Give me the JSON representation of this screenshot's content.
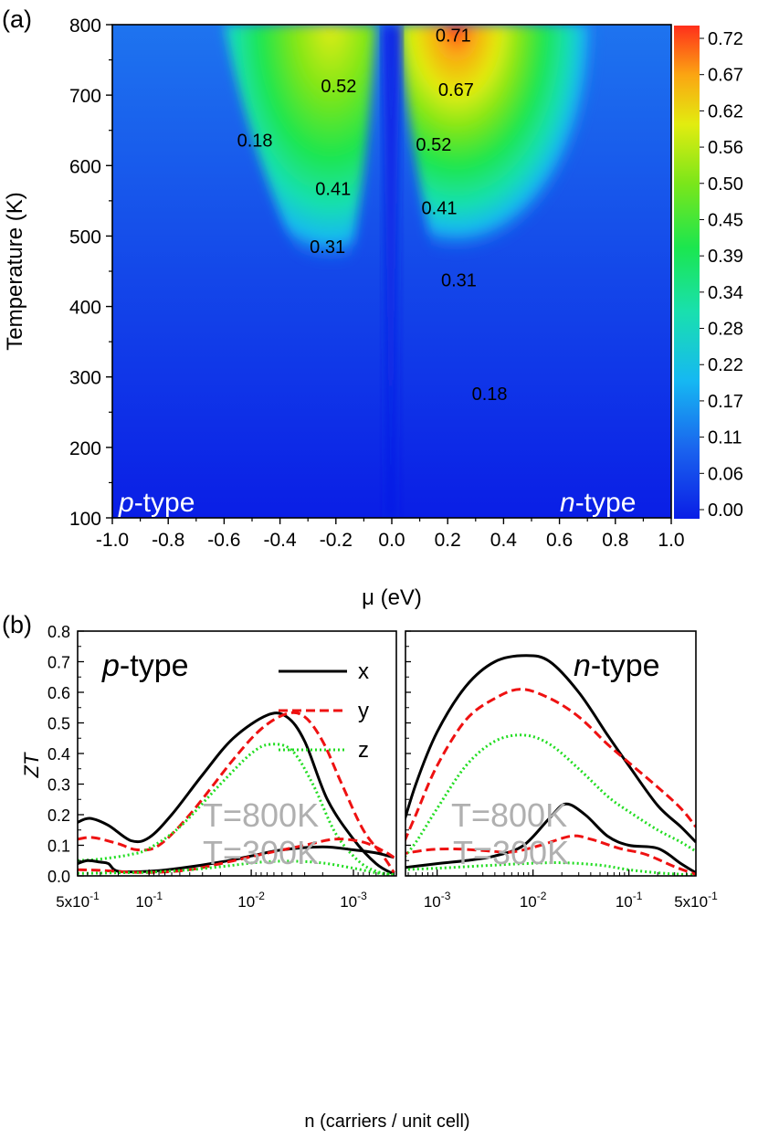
{
  "panel_a": {
    "label": "(a)",
    "xlabel": "μ (eV)",
    "ylabel": "Temperature (K)",
    "x_ticks": [
      "-1.0",
      "-0.8",
      "-0.6",
      "-0.4",
      "-0.2",
      "0.0",
      "0.2",
      "0.4",
      "0.6",
      "0.8",
      "1.0"
    ],
    "y_ticks": [
      "100",
      "200",
      "300",
      "400",
      "500",
      "600",
      "700",
      "800"
    ],
    "colorbar_ticks": [
      "0.72",
      "0.67",
      "0.62",
      "0.56",
      "0.50",
      "0.45",
      "0.39",
      "0.34",
      "0.28",
      "0.22",
      "0.17",
      "0.11",
      "0.06",
      "0.00"
    ],
    "colors": [
      "#0a1ee6",
      "#1a63ee",
      "#16b8f2",
      "#19e0ae",
      "#1be64f",
      "#7be61a",
      "#e2ec10",
      "#fba512",
      "#ff2f1b"
    ],
    "type_left_italic": "p",
    "type_left_rest": "-type",
    "type_right_italic": "n",
    "type_right_rest": "-type",
    "contour_labels": [
      {
        "text": "0.71",
        "mu": 0.22,
        "T": 785
      },
      {
        "text": "0.52",
        "mu": -0.19,
        "T": 713
      },
      {
        "text": "0.67",
        "mu": 0.23,
        "T": 708
      },
      {
        "text": "0.18",
        "mu": -0.49,
        "T": 636
      },
      {
        "text": "0.52",
        "mu": 0.15,
        "T": 630
      },
      {
        "text": "0.41",
        "mu": -0.21,
        "T": 567
      },
      {
        "text": "0.41",
        "mu": 0.17,
        "T": 540
      },
      {
        "text": "0.31",
        "mu": -0.23,
        "T": 485
      },
      {
        "text": "0.31",
        "mu": 0.24,
        "T": 438
      },
      {
        "text": "0.18",
        "mu": 0.35,
        "T": 276
      }
    ]
  },
  "panel_b": {
    "label": "(b)",
    "xlabel": "n (carriers / unit cell)",
    "ylabel": "ZT",
    "y_ticks": [
      "0.0",
      "0.1",
      "0.2",
      "0.3",
      "0.4",
      "0.5",
      "0.6",
      "0.7",
      "0.8"
    ],
    "left_x_ticks": [
      {
        "mant": "5x10",
        "exp": "-1",
        "logn": -0.301
      },
      {
        "mant": "10",
        "exp": "-1",
        "logn": -1
      },
      {
        "mant": "10",
        "exp": "-2",
        "logn": -2
      },
      {
        "mant": "10",
        "exp": "-3",
        "logn": -3
      }
    ],
    "right_x_ticks": [
      {
        "mant": "10",
        "exp": "-3",
        "logn": -3
      },
      {
        "mant": "10",
        "exp": "-2",
        "logn": -2
      },
      {
        "mant": "10",
        "exp": "-1",
        "logn": -1
      },
      {
        "mant": "5x10",
        "exp": "-1",
        "logn": -0.301
      }
    ],
    "left_title_italic": "p",
    "left_title_rest": "-type",
    "right_title_italic": "n",
    "right_title_rest": "-type",
    "annotation_high": "T=800K",
    "annotation_low": "T=300K",
    "legend": [
      "x",
      "y",
      "z"
    ]
  },
  "chart_data": [
    {
      "type": "heatmap",
      "title": "",
      "xlabel": "μ (eV)",
      "ylabel": "Temperature (K)",
      "xlim": [
        -1.0,
        1.0
      ],
      "ylim": [
        100,
        800
      ],
      "colorbar_range": [
        0.0,
        0.72
      ],
      "peaks": [
        {
          "mu": 0.25,
          "T": 800,
          "ZT": 0.72
        },
        {
          "mu": -0.2,
          "T": 800,
          "ZT": 0.53
        }
      ]
    },
    {
      "type": "line",
      "panel": "p-type",
      "xlabel": "n (carriers / unit cell)",
      "ylabel": "ZT",
      "x_scale": "log",
      "xlim": [
        0.5,
        0.0004
      ],
      "ylim": [
        0,
        0.8
      ],
      "series": [
        {
          "name": "x",
          "T": "T=800K",
          "color": "#000000",
          "dash": "solid",
          "points": [
            [
              0.5,
              0.175
            ],
            [
              0.38,
              0.188
            ],
            [
              0.25,
              0.165
            ],
            [
              0.15,
              0.115
            ],
            [
              0.1,
              0.125
            ],
            [
              0.06,
              0.2
            ],
            [
              0.03,
              0.33
            ],
            [
              0.015,
              0.45
            ],
            [
              0.007,
              0.525
            ],
            [
              0.0045,
              0.52
            ],
            [
              0.003,
              0.44
            ],
            [
              0.0018,
              0.25
            ],
            [
              0.001,
              0.12
            ],
            [
              0.0006,
              0.04
            ],
            [
              0.0004,
              0.005
            ]
          ]
        },
        {
          "name": "y",
          "T": "T=800K",
          "color": "#ee1111",
          "dash": "dashed",
          "points": [
            [
              0.5,
              0.12
            ],
            [
              0.35,
              0.125
            ],
            [
              0.2,
              0.105
            ],
            [
              0.13,
              0.085
            ],
            [
              0.08,
              0.1
            ],
            [
              0.04,
              0.2
            ],
            [
              0.015,
              0.38
            ],
            [
              0.008,
              0.48
            ],
            [
              0.0045,
              0.53
            ],
            [
              0.003,
              0.52
            ],
            [
              0.002,
              0.44
            ],
            [
              0.0013,
              0.3
            ],
            [
              0.0008,
              0.15
            ],
            [
              0.0005,
              0.06
            ],
            [
              0.0004,
              0.01
            ]
          ]
        },
        {
          "name": "z",
          "T": "T=800K",
          "color": "#22dd22",
          "dash": "dotted",
          "points": [
            [
              0.5,
              0.05
            ],
            [
              0.3,
              0.055
            ],
            [
              0.15,
              0.07
            ],
            [
              0.1,
              0.09
            ],
            [
              0.05,
              0.16
            ],
            [
              0.02,
              0.3
            ],
            [
              0.01,
              0.4
            ],
            [
              0.0065,
              0.43
            ],
            [
              0.004,
              0.41
            ],
            [
              0.0025,
              0.3
            ],
            [
              0.0015,
              0.14
            ],
            [
              0.0009,
              0.05
            ],
            [
              0.0006,
              0.015
            ],
            [
              0.0004,
              0.004
            ]
          ]
        },
        {
          "name": "x",
          "T": "T=300K",
          "color": "#000000",
          "dash": "solid",
          "points": [
            [
              0.5,
              0.04
            ],
            [
              0.4,
              0.05
            ],
            [
              0.3,
              0.045
            ],
            [
              0.25,
              0.04
            ],
            [
              0.2,
              0.015
            ],
            [
              0.1,
              0.015
            ],
            [
              0.05,
              0.025
            ],
            [
              0.02,
              0.045
            ],
            [
              0.01,
              0.065
            ],
            [
              0.005,
              0.085
            ],
            [
              0.002,
              0.095
            ],
            [
              0.001,
              0.085
            ],
            [
              0.0006,
              0.075
            ],
            [
              0.0004,
              0.06
            ]
          ]
        },
        {
          "name": "y",
          "T": "T=300K",
          "color": "#ee1111",
          "dash": "dashed",
          "points": [
            [
              0.5,
              0.02
            ],
            [
              0.3,
              0.018
            ],
            [
              0.15,
              0.012
            ],
            [
              0.08,
              0.012
            ],
            [
              0.04,
              0.02
            ],
            [
              0.02,
              0.04
            ],
            [
              0.008,
              0.07
            ],
            [
              0.003,
              0.1
            ],
            [
              0.0015,
              0.12
            ],
            [
              0.0008,
              0.11
            ],
            [
              0.0005,
              0.08
            ],
            [
              0.0004,
              0.06
            ]
          ]
        },
        {
          "name": "z",
          "T": "T=300K",
          "color": "#22dd22",
          "dash": "dotted",
          "points": [
            [
              0.5,
              0.008
            ],
            [
              0.2,
              0.01
            ],
            [
              0.1,
              0.012
            ],
            [
              0.04,
              0.02
            ],
            [
              0.02,
              0.03
            ],
            [
              0.008,
              0.045
            ],
            [
              0.004,
              0.048
            ],
            [
              0.002,
              0.042
            ],
            [
              0.001,
              0.025
            ],
            [
              0.0006,
              0.01
            ],
            [
              0.0004,
              0.003
            ]
          ]
        }
      ]
    },
    {
      "type": "line",
      "panel": "n-type",
      "xlabel": "n (carriers / unit cell)",
      "ylabel": "ZT",
      "x_scale": "log",
      "xlim": [
        0.0004,
        0.5
      ],
      "ylim": [
        0,
        0.8
      ],
      "series": [
        {
          "name": "x",
          "T": "T=800K",
          "color": "#000000",
          "dash": "solid",
          "points": [
            [
              0.0004,
              0.12
            ],
            [
              0.0006,
              0.3
            ],
            [
              0.001,
              0.47
            ],
            [
              0.002,
              0.62
            ],
            [
              0.004,
              0.7
            ],
            [
              0.0085,
              0.72
            ],
            [
              0.015,
              0.7
            ],
            [
              0.03,
              0.6
            ],
            [
              0.06,
              0.46
            ],
            [
              0.1,
              0.36
            ],
            [
              0.2,
              0.23
            ],
            [
              0.35,
              0.16
            ],
            [
              0.5,
              0.11
            ]
          ]
        },
        {
          "name": "y",
          "T": "T=800K",
          "color": "#ee1111",
          "dash": "dashed",
          "points": [
            [
              0.0004,
              0.07
            ],
            [
              0.0006,
              0.2
            ],
            [
              0.001,
              0.36
            ],
            [
              0.002,
              0.51
            ],
            [
              0.004,
              0.58
            ],
            [
              0.0075,
              0.61
            ],
            [
              0.015,
              0.58
            ],
            [
              0.03,
              0.52
            ],
            [
              0.06,
              0.43
            ],
            [
              0.1,
              0.37
            ],
            [
              0.2,
              0.29
            ],
            [
              0.35,
              0.22
            ],
            [
              0.5,
              0.16
            ]
          ]
        },
        {
          "name": "z",
          "T": "T=800K",
          "color": "#22dd22",
          "dash": "dotted",
          "points": [
            [
              0.0004,
              0.04
            ],
            [
              0.0006,
              0.11
            ],
            [
              0.001,
              0.22
            ],
            [
              0.002,
              0.36
            ],
            [
              0.004,
              0.44
            ],
            [
              0.008,
              0.46
            ],
            [
              0.015,
              0.43
            ],
            [
              0.03,
              0.35
            ],
            [
              0.06,
              0.26
            ],
            [
              0.1,
              0.21
            ],
            [
              0.2,
              0.15
            ],
            [
              0.35,
              0.11
            ],
            [
              0.5,
              0.08
            ]
          ]
        },
        {
          "name": "x",
          "T": "T=300K",
          "color": "#000000",
          "dash": "solid",
          "points": [
            [
              0.0004,
              0.025
            ],
            [
              0.001,
              0.04
            ],
            [
              0.002,
              0.05
            ],
            [
              0.004,
              0.065
            ],
            [
              0.008,
              0.1
            ],
            [
              0.015,
              0.19
            ],
            [
              0.022,
              0.235
            ],
            [
              0.035,
              0.2
            ],
            [
              0.06,
              0.13
            ],
            [
              0.1,
              0.1
            ],
            [
              0.2,
              0.09
            ],
            [
              0.35,
              0.04
            ],
            [
              0.5,
              0.01
            ]
          ]
        },
        {
          "name": "y",
          "T": "T=300K",
          "color": "#ee1111",
          "dash": "dashed",
          "points": [
            [
              0.0004,
              0.07
            ],
            [
              0.0008,
              0.085
            ],
            [
              0.0015,
              0.088
            ],
            [
              0.003,
              0.083
            ],
            [
              0.006,
              0.078
            ],
            [
              0.012,
              0.1
            ],
            [
              0.025,
              0.13
            ],
            [
              0.04,
              0.12
            ],
            [
              0.08,
              0.09
            ],
            [
              0.15,
              0.07
            ],
            [
              0.3,
              0.03
            ],
            [
              0.5,
              0.005
            ]
          ]
        },
        {
          "name": "z",
          "T": "T=300K",
          "color": "#22dd22",
          "dash": "dotted",
          "points": [
            [
              0.0004,
              0.02
            ],
            [
              0.001,
              0.025
            ],
            [
              0.003,
              0.033
            ],
            [
              0.008,
              0.04
            ],
            [
              0.02,
              0.043
            ],
            [
              0.05,
              0.035
            ],
            [
              0.1,
              0.02
            ],
            [
              0.2,
              0.01
            ],
            [
              0.35,
              0.005
            ],
            [
              0.5,
              0.003
            ]
          ]
        }
      ]
    }
  ]
}
